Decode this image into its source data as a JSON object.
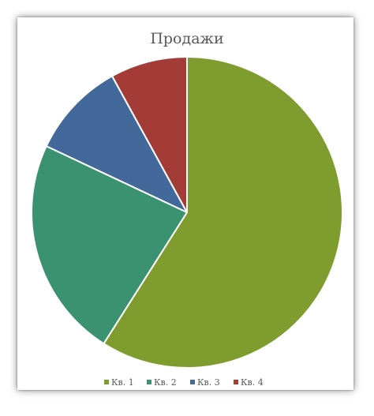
{
  "chart_data": {
    "type": "pie",
    "title": "Продажи",
    "categories": [
      "Кв. 1",
      "Кв. 2",
      "Кв. 3",
      "Кв. 4"
    ],
    "values": [
      59,
      23,
      10,
      8
    ],
    "colors": [
      "#7f9d2e",
      "#3a9270",
      "#43689a",
      "#a33b37"
    ],
    "legend_position": "bottom",
    "start_angle_deg": 0,
    "direction": "clockwise"
  }
}
